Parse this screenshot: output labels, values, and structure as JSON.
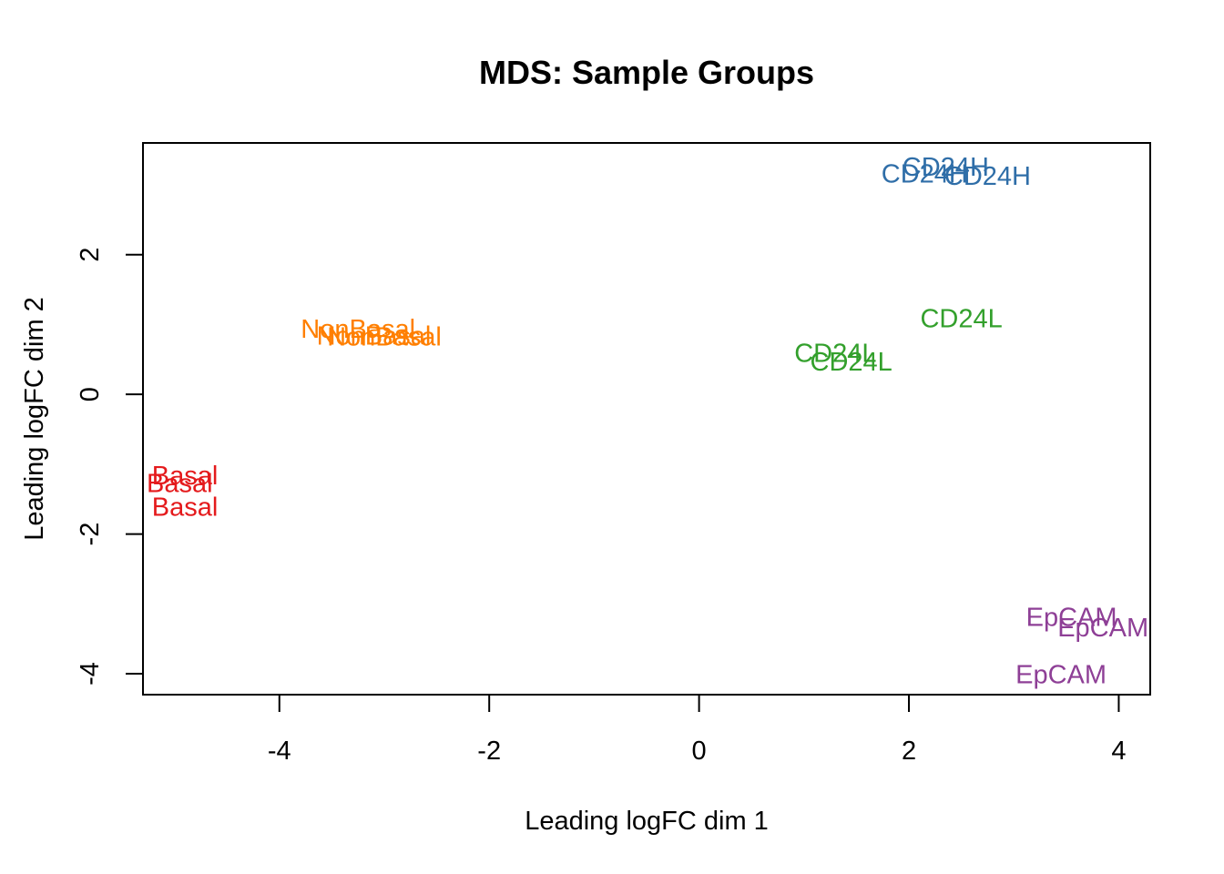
{
  "chart_data": {
    "type": "scatter",
    "title": "MDS: Sample Groups",
    "xlabel": "Leading logFC dim 1",
    "ylabel": "Leading logFC dim 2",
    "xlim": [
      -5.3,
      4.3
    ],
    "ylim": [
      -4.3,
      3.6
    ],
    "xticks": [
      -4,
      -2,
      0,
      2,
      4
    ],
    "yticks": [
      -4,
      -2,
      0,
      2
    ],
    "grid": false,
    "legend": "none",
    "groups": [
      {
        "label": "Basal",
        "color": "#E41A1C"
      },
      {
        "label": "NonBasal",
        "color": "#FF7F00"
      },
      {
        "label": "CD24L",
        "color": "#33A02C"
      },
      {
        "label": "CD24H",
        "color": "#2F6EA8"
      },
      {
        "label": "EpCAM",
        "color": "#8E3F96"
      }
    ],
    "points": [
      {
        "group": "Basal",
        "x": -4.9,
        "y": -1.17
      },
      {
        "group": "Basal",
        "x": -4.95,
        "y": -1.28
      },
      {
        "group": "Basal",
        "x": -4.9,
        "y": -1.62
      },
      {
        "group": "NonBasal",
        "x": -3.25,
        "y": 0.93
      },
      {
        "group": "NonBasal",
        "x": -3.1,
        "y": 0.83
      },
      {
        "group": "NonBasal",
        "x": -3.0,
        "y": 0.82
      },
      {
        "group": "CD24L",
        "x": 2.5,
        "y": 1.08
      },
      {
        "group": "CD24L",
        "x": 1.3,
        "y": 0.58
      },
      {
        "group": "CD24L",
        "x": 1.45,
        "y": 0.46
      },
      {
        "group": "CD24H",
        "x": 2.35,
        "y": 3.25
      },
      {
        "group": "CD24H",
        "x": 2.15,
        "y": 3.15
      },
      {
        "group": "CD24H",
        "x": 2.75,
        "y": 3.12
      },
      {
        "group": "EpCAM",
        "x": 3.55,
        "y": -3.2
      },
      {
        "group": "EpCAM",
        "x": 3.85,
        "y": -3.35
      },
      {
        "group": "EpCAM",
        "x": 3.45,
        "y": -4.02
      }
    ]
  }
}
